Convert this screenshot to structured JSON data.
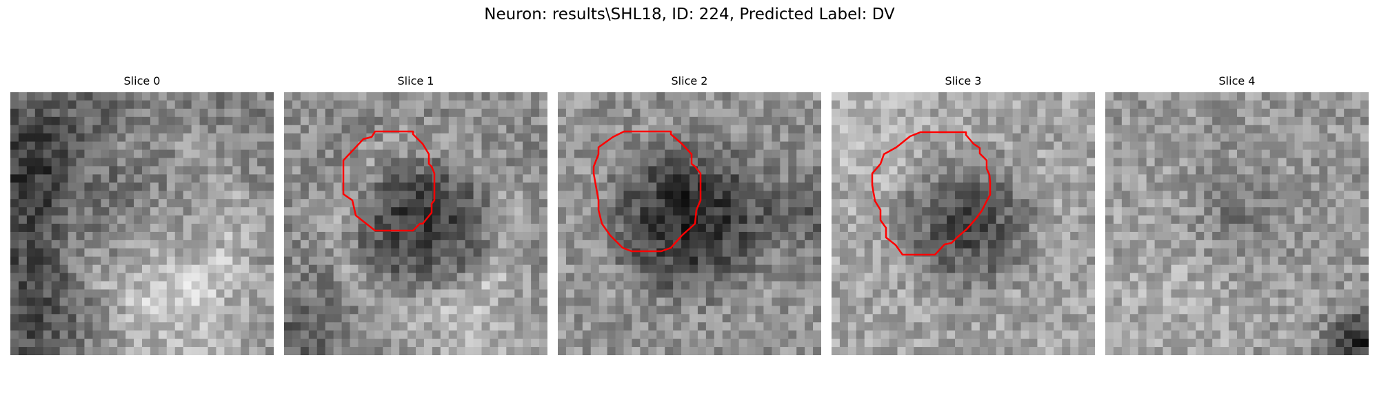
{
  "figure": {
    "title": "Neuron: results\\SHL18, ID: 224, Predicted Label: DV"
  },
  "slices": [
    {
      "title": "Slice 0",
      "has_contour": false
    },
    {
      "title": "Slice 1",
      "has_contour": true
    },
    {
      "title": "Slice 2",
      "has_contour": true
    },
    {
      "title": "Slice 3",
      "has_contour": true
    },
    {
      "title": "Slice 4",
      "has_contour": false
    }
  ],
  "colors": {
    "contour": "#ff0000"
  }
}
